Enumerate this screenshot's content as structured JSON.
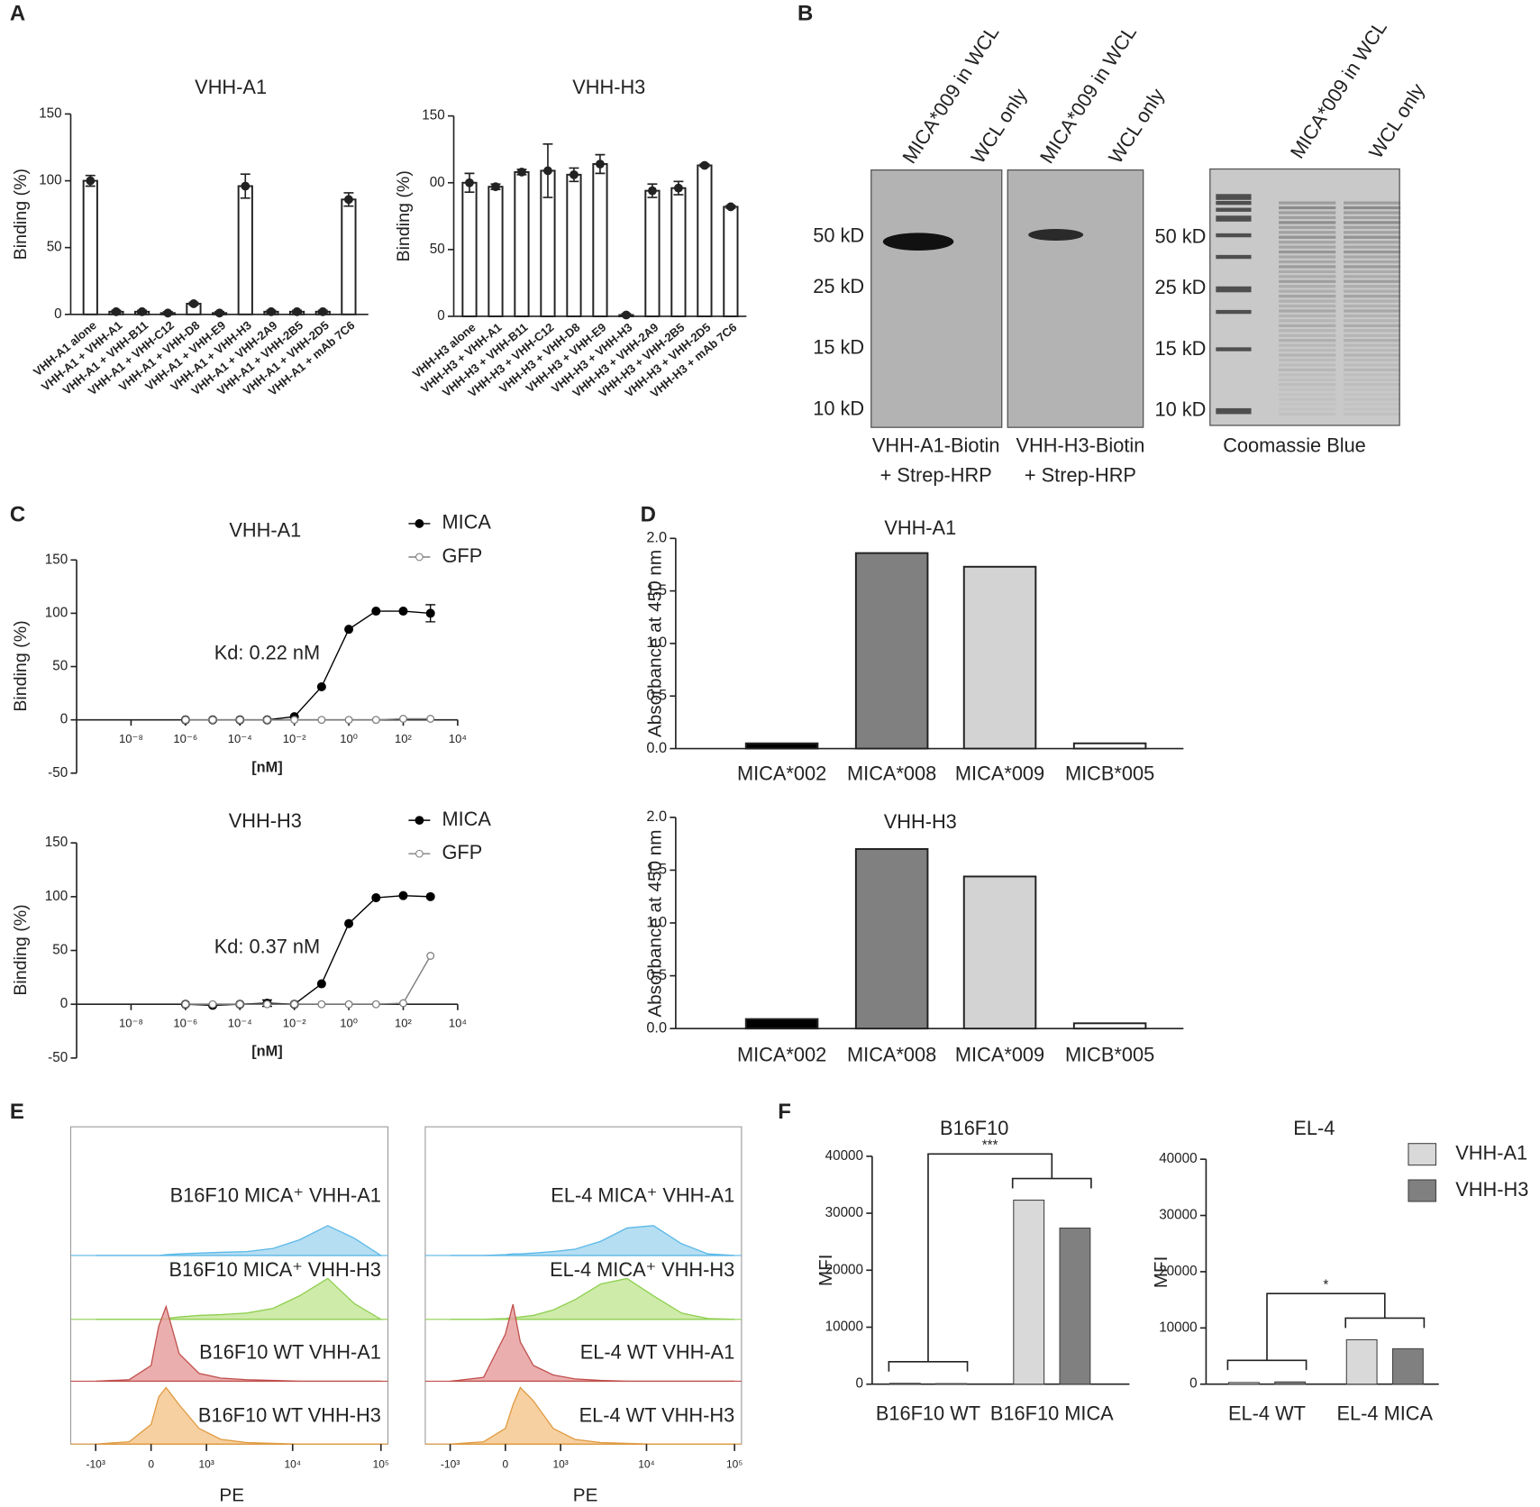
{
  "chart_data": [
    {
      "panel": "A",
      "type": "bar",
      "title": "VHH-A1",
      "ylabel": "Binding (%)",
      "categories": [
        "VHH-A1 alone",
        "VHH-A1 + VHH-A1",
        "VHH-A1 + VHH-B11",
        "VHH-A1 + VHH-C12",
        "VHH-A1 + VHH-D8",
        "VHH-A1 + VHH-E9",
        "VHH-A1 + VHH-H3",
        "VHH-A1 + VHH-2A9",
        "VHH-A1 + VHH-2B5",
        "VHH-A1 + VHH-2D5",
        "VHH-A1 + mAb 7C6"
      ],
      "values": [
        100,
        2,
        2,
        1,
        8,
        1,
        96,
        2,
        2,
        2,
        86
      ],
      "errors": [
        4,
        1,
        1,
        1,
        1,
        1,
        9,
        1,
        1,
        1,
        5
      ],
      "color": "#ffffff",
      "ylim": [
        0,
        150
      ],
      "yticks": [
        0,
        50,
        100,
        150
      ]
    },
    {
      "type": "bar",
      "title": "VHH-H3",
      "ylabel": "Binding (%)",
      "categories": [
        "VHH-H3 alone",
        "VHH-H3 + VHH-A1",
        "VHH-H3 + VHH-B11",
        "VHH-H3 + VHH-C12",
        "VHH-H3 + VHH-D8",
        "VHH-H3 + VHH-E9",
        "VHH-H3 + VHH-H3",
        "VHH-H3 + VHH-2A9",
        "VHH-H3 + VHH-2B5",
        "VHH-H3 + VHH-2D5",
        "VHH-H3 + mAb 7C6"
      ],
      "values": [
        100,
        97,
        108,
        109,
        106,
        114,
        1,
        94,
        96,
        113,
        82
      ],
      "errors": [
        7,
        2,
        2,
        20,
        5,
        7,
        1,
        5,
        5,
        1,
        1
      ],
      "color": "#ffffff",
      "ylim": [
        0,
        150
      ],
      "yticks": [
        0,
        50,
        {
          "value": 100,
          "label": "00"
        },
        150
      ]
    },
    {
      "panel": "C",
      "type": "line",
      "title": "VHH-A1",
      "xlabel": "[nM]",
      "ylabel": "Binding (%)",
      "xscale": "log",
      "annotation": "Kd: 0.22 nM",
      "x": [
        1e-06,
        1e-05,
        0.0001,
        0.001,
        0.01,
        0.1,
        1,
        10,
        100,
        1000
      ],
      "series": [
        {
          "name": "MICA",
          "color": "#000000",
          "marker": "filled",
          "values": [
            0,
            0,
            0,
            0,
            3,
            31,
            85,
            102,
            102,
            100
          ],
          "errors": [
            null,
            null,
            null,
            null,
            null,
            null,
            null,
            null,
            null,
            8
          ]
        },
        {
          "name": "GFP",
          "color": "#808080",
          "marker": "open",
          "values": [
            0,
            0,
            0,
            0,
            0,
            0,
            0,
            0,
            1,
            1
          ]
        }
      ],
      "xlim": [
        1e-10,
        10000
      ],
      "xticks": [
        {
          "value": 1e-08,
          "label": "10⁻⁸"
        },
        {
          "value": 1e-06,
          "label": "10⁻⁶"
        },
        {
          "value": 0.0001,
          "label": "10⁻⁴"
        },
        {
          "value": 0.01,
          "label": "10⁻²"
        },
        {
          "value": 1,
          "label": "10⁰"
        },
        {
          "value": 100,
          "label": "10²"
        },
        {
          "value": 10000,
          "label": "10⁴"
        }
      ],
      "ylim": [
        -50,
        150
      ],
      "yticks": [
        -50,
        0,
        50,
        100,
        150
      ]
    },
    {
      "type": "line",
      "title": "VHH-H3",
      "xlabel": "[nM]",
      "ylabel": "Binding (%)",
      "xscale": "log",
      "annotation": "Kd: 0.37 nM",
      "x": [
        1e-06,
        1e-05,
        0.0001,
        0.001,
        0.01,
        0.1,
        1,
        10,
        100,
        1000
      ],
      "series": [
        {
          "name": "MICA",
          "color": "#000000",
          "marker": "filled",
          "values": [
            0,
            -1,
            0,
            1,
            0,
            19,
            75,
            99,
            101,
            100
          ],
          "errors": [
            null,
            null,
            null,
            3,
            null,
            null,
            null,
            null,
            null,
            null
          ]
        },
        {
          "name": "GFP",
          "color": "#808080",
          "marker": "open",
          "values": [
            0,
            0,
            0,
            0,
            0,
            0,
            0,
            0,
            1,
            45
          ]
        }
      ],
      "xlim": [
        1e-10,
        10000
      ],
      "xticks": [
        {
          "value": 1e-08,
          "label": "10⁻⁸"
        },
        {
          "value": 1e-06,
          "label": "10⁻⁶"
        },
        {
          "value": 0.0001,
          "label": "10⁻⁴"
        },
        {
          "value": 0.01,
          "label": "10⁻²"
        },
        {
          "value": 1,
          "label": "10⁰"
        },
        {
          "value": 100,
          "label": "10²"
        },
        {
          "value": 10000,
          "label": "10⁴"
        }
      ],
      "ylim": [
        -50,
        150
      ],
      "yticks": [
        -50,
        0,
        50,
        100,
        150
      ]
    },
    {
      "panel": "D",
      "type": "bar",
      "title": "VHH-A1",
      "ylabel": "Absorbance at 450 nm",
      "categories": [
        "MICA*002",
        "MICA*008",
        "MICA*009",
        "MICB*005"
      ],
      "values": [
        0.05,
        1.86,
        1.73,
        0.05
      ],
      "colors": [
        "#000000",
        "#808080",
        "#d3d3d3",
        "#ffffff"
      ],
      "ylim": [
        0,
        2
      ],
      "yticks": [
        {
          "value": 0,
          "label": "0.0"
        },
        0.5,
        {
          "value": 1,
          "label": "1.0"
        },
        1.5,
        {
          "value": 2,
          "label": "2.0"
        }
      ]
    },
    {
      "type": "bar",
      "title": "VHH-H3",
      "ylabel": "Absorbance at 450 nm",
      "categories": [
        "MICA*002",
        "MICA*008",
        "MICA*009",
        "MICB*005"
      ],
      "values": [
        0.09,
        1.7,
        1.44,
        0.05
      ],
      "colors": [
        "#000000",
        "#808080",
        "#d3d3d3",
        "#ffffff"
      ],
      "ylim": [
        0,
        2
      ],
      "yticks": [
        {
          "value": 0,
          "label": "0.0"
        },
        0.5,
        {
          "value": 1,
          "label": "1.0"
        },
        1.5,
        {
          "value": 2,
          "label": "2.0"
        }
      ]
    },
    {
      "panel": "E",
      "type": "density",
      "xlabel": "PE",
      "xscale": "biexponential",
      "x": [
        -1000,
        -300,
        0,
        100,
        200,
        400,
        800,
        1500,
        3000,
        6000,
        12000,
        25000,
        50000,
        100000
      ],
      "series": [
        {
          "name": "B16F10 MICA⁺ VHH-A1",
          "color": "#5bb8e8",
          "fill": "#a8d8f0",
          "values": [
            0,
            0,
            0,
            0,
            1,
            2,
            3,
            4,
            5,
            9,
            20,
            38,
            22,
            0
          ]
        },
        {
          "name": "B16F10 MICA⁺ VHH-H3",
          "color": "#8fcf50",
          "fill": "#c5e89a",
          "values": [
            0,
            0,
            0,
            0,
            1,
            3,
            5,
            6,
            8,
            14,
            30,
            52,
            20,
            0
          ]
        },
        {
          "name": "B16F10 WT VHH-A1",
          "color": "#c0504d",
          "fill": "#e8a0a0",
          "values": [
            0,
            2,
            20,
            70,
            95,
            35,
            10,
            4,
            2,
            1,
            0,
            0,
            0,
            0
          ]
        },
        {
          "name": "B16F10 WT VHH-H3",
          "color": "#e09a40",
          "fill": "#f5c890",
          "values": [
            0,
            3,
            25,
            60,
            72,
            50,
            20,
            6,
            2,
            1,
            0,
            0,
            0,
            0
          ]
        }
      ],
      "xlim": [
        -2000,
        120000
      ],
      "xticks": [
        {
          "value": -1000,
          "label": "-10³"
        },
        0,
        {
          "value": 1000,
          "label": "10³"
        },
        {
          "value": 10000,
          "label": "10⁴"
        },
        {
          "value": 100000,
          "label": "10⁵"
        }
      ]
    },
    {
      "type": "density",
      "xlabel": "PE",
      "xscale": "biexponential",
      "x": [
        -1000,
        -300,
        0,
        100,
        200,
        400,
        800,
        1500,
        3000,
        6000,
        12000,
        25000,
        50000,
        100000
      ],
      "series": [
        {
          "name": "EL-4 MICA⁺ VHH-A1",
          "color": "#5bb8e8",
          "fill": "#a8d8f0",
          "values": [
            0,
            0,
            1,
            2,
            2,
            3,
            5,
            8,
            18,
            35,
            38,
            15,
            2,
            0
          ]
        },
        {
          "name": "EL-4 MICA⁺ VHH-H3",
          "color": "#8fcf50",
          "fill": "#c5e89a",
          "values": [
            0,
            0,
            1,
            2,
            3,
            5,
            12,
            25,
            45,
            52,
            30,
            8,
            1,
            0
          ]
        },
        {
          "name": "EL-4 WT VHH-A1",
          "color": "#c0504d",
          "fill": "#e8a0a0",
          "values": [
            0,
            5,
            60,
            98,
            50,
            20,
            8,
            3,
            1,
            0,
            0,
            0,
            0,
            0
          ]
        },
        {
          "name": "EL-4 WT VHH-H3",
          "color": "#e09a40",
          "fill": "#f5c890",
          "values": [
            0,
            3,
            20,
            50,
            72,
            55,
            20,
            6,
            2,
            1,
            0,
            0,
            0,
            0
          ]
        }
      ],
      "xlim": [
        -2000,
        120000
      ],
      "xticks": [
        {
          "value": -1000,
          "label": "-10³"
        },
        0,
        {
          "value": 1000,
          "label": "10³"
        },
        {
          "value": 10000,
          "label": "10⁴"
        },
        {
          "value": 100000,
          "label": "10⁵"
        }
      ]
    },
    {
      "panel": "F",
      "type": "grouped_bar",
      "series": [
        {
          "name": "VHH-A1",
          "color": "#d9d9d9"
        },
        {
          "name": "VHH-H3",
          "color": "#808080"
        }
      ],
      "subplots": [
        {
          "title": "B16F10",
          "ylabel": "MFI",
          "categories": [
            "B16F10 WT",
            "B16F10 MICA"
          ],
          "values": [
            [
              150,
              32300
            ],
            [
              100,
              27400
            ]
          ],
          "ylim": [
            0,
            40000
          ],
          "yticks": [
            0,
            10000,
            20000,
            30000,
            40000
          ],
          "annotation": "***"
        },
        {
          "title": "EL-4",
          "ylabel": "MFI",
          "categories": [
            "EL-4 WT",
            "EL-4 MICA"
          ],
          "values": [
            [
              300,
              7900
            ],
            [
              400,
              6300
            ]
          ],
          "ylim": [
            0,
            40000
          ],
          "yticks": [
            0,
            10000,
            20000,
            30000,
            40000
          ],
          "annotation": "*"
        }
      ]
    }
  ],
  "blot": {
    "panel": "B",
    "membranes": [
      {
        "lanes": [
          "MICA*009 in WCL",
          "WCL only"
        ],
        "markers": [
          "50 kD",
          "25 kD",
          "15 kD",
          "10 kD"
        ],
        "caption": [
          "VHH-A1-Biotin",
          "+ Strep-HRP"
        ]
      },
      {
        "lanes": [
          "MICA*009 in WCL",
          "WCL only"
        ],
        "caption": [
          "VHH-H3-Biotin",
          "+ Strep-HRP"
        ]
      },
      {
        "lanes": [
          "MICA*009 in WCL",
          "WCL only"
        ],
        "markers": [
          "50 kD",
          "25 kD",
          "15 kD",
          "10 kD"
        ],
        "caption": [
          "Coomassie Blue"
        ]
      }
    ]
  }
}
